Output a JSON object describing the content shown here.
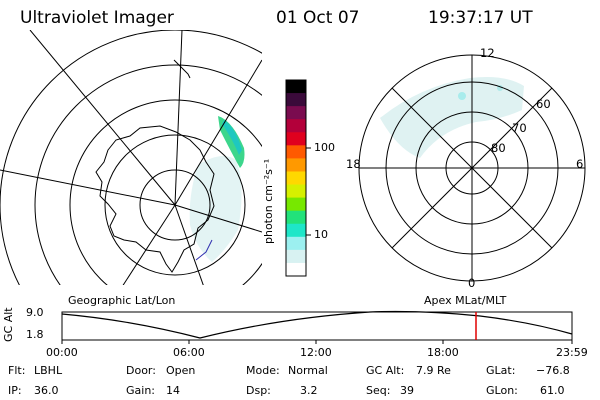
{
  "header": {
    "title": "Ultraviolet Imager",
    "date": "01 Oct 07",
    "time": "19:37:17 UT"
  },
  "colorbar": {
    "label": "photon cm⁻²s⁻¹",
    "ticks": [
      "100",
      "10"
    ],
    "colors": [
      "#000000",
      "#3a0a3a",
      "#7a0b4f",
      "#b3003a",
      "#e0001e",
      "#ff5a00",
      "#ff9900",
      "#ffd800",
      "#d6f000",
      "#77e800",
      "#22e27a",
      "#1ee6c8",
      "#9cf0f0",
      "#d8f2f2",
      "#ffffff"
    ]
  },
  "left_map": {
    "caption": "Geographic Lat/Lon"
  },
  "right_map": {
    "caption": "Apex MLat/MLT",
    "mlt_labels": {
      "top": "12",
      "left": "18",
      "right": "6",
      "bottom": "0"
    },
    "lat_labels": [
      "60",
      "70",
      "80"
    ]
  },
  "timeline": {
    "axis_label": "GC Alt",
    "ticks_y": [
      "9.0",
      "1.8"
    ],
    "ticks_x": [
      "00:00",
      "06:00",
      "12:00",
      "18:00",
      "23:59"
    ],
    "marker_time": "19:37",
    "marker_color": "#e00000"
  },
  "info": {
    "flt_label": "Flt:",
    "flt": "LBHL",
    "ip_label": "IP:",
    "ip": "36.0",
    "door_label": "Door:",
    "door": "Open",
    "gain_label": "Gain:",
    "gain": "14",
    "mode_label": "Mode:",
    "mode": "Normal",
    "dsp_label": "Dsp:",
    "dsp": "3.2",
    "gcalt_label": "GC Alt:",
    "gcalt": "7.9 Re",
    "seq_label": "Seq:",
    "seq": "39",
    "glat_label": "GLat:",
    "glat": "−76.8",
    "glon_label": "GLon:",
    "glon": "61.0"
  }
}
